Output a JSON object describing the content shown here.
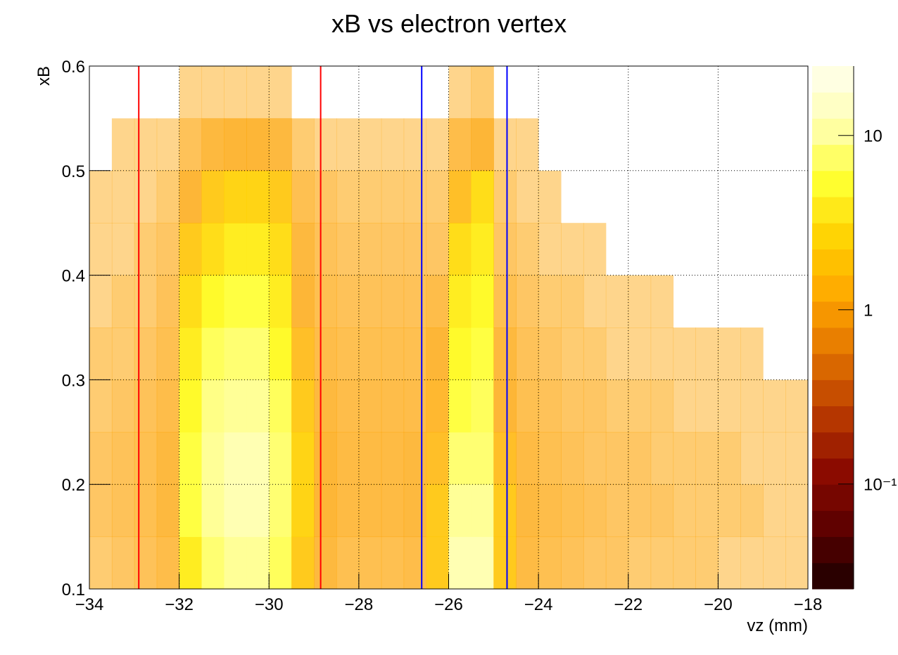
{
  "chart_data": {
    "type": "heatmap",
    "title": "xB vs electron vertex",
    "x_label": "vz (mm)",
    "y_label": "xB",
    "xlim": [
      -34,
      -18
    ],
    "xticks": [
      {
        "value": -34,
        "label": "−34"
      },
      {
        "value": -32,
        "label": "−32"
      },
      {
        "value": -30,
        "label": "−30"
      },
      {
        "value": -28,
        "label": "−28"
      },
      {
        "value": -26,
        "label": "−26"
      },
      {
        "value": -24,
        "label": "−24"
      },
      {
        "value": -22,
        "label": "−22"
      },
      {
        "value": -20,
        "label": "−20"
      },
      {
        "value": -18,
        "label": "−18"
      }
    ],
    "ylim": [
      0.1,
      0.6
    ],
    "yticks": [
      0.1,
      0.2,
      0.3,
      0.4,
      0.5,
      0.6
    ],
    "grid": true,
    "zlim": [
      0.025,
      25
    ],
    "zlog": true,
    "zticks": [
      {
        "value": 0.1,
        "label": "10⁻¹"
      },
      1,
      10
    ],
    "palette": [
      "#1c0000",
      "#5a0000",
      "#8a0a00",
      "#b83a00",
      "#e07000",
      "#ffa500",
      "#ffd000",
      "#ffff30",
      "#ffffb0",
      "#fffff0"
    ],
    "xbins": [
      -34,
      -33.5,
      -33,
      -32.5,
      -32,
      -31.5,
      -31,
      -30.5,
      -30,
      -29.5,
      -29,
      -28.5,
      -28,
      -27.5,
      -27,
      -26.5,
      -26,
      -25.5,
      -25,
      -24.5,
      -24,
      -23.5,
      -23,
      -22.5,
      -22,
      -21.5,
      -21,
      -20.5,
      -20,
      -19.5,
      -19,
      -18.5,
      -18
    ],
    "ybins": [
      0.1,
      0.15,
      0.2,
      0.25,
      0.3,
      0.35,
      0.4,
      0.45,
      0.5,
      0.55,
      0.6
    ],
    "z": [
      [
        0.2,
        0.3,
        0.3,
        0.2,
        0.2,
        0.1,
        0.1,
        0.1,
        null,
        null
      ],
      [
        0.3,
        0.4,
        0.4,
        0.3,
        0.2,
        0.2,
        0.1,
        0.1,
        0.1,
        null
      ],
      [
        0.4,
        0.5,
        0.5,
        0.4,
        0.3,
        0.2,
        0.2,
        0.1,
        0.1,
        null
      ],
      [
        0.6,
        0.8,
        0.8,
        0.6,
        0.5,
        0.4,
        0.3,
        0.2,
        0.1,
        null
      ],
      [
        4,
        6,
        6,
        5,
        4,
        3,
        2,
        1,
        0.4,
        0.1
      ],
      [
        8,
        10,
        10,
        9,
        7,
        5,
        3,
        2,
        0.8,
        0.1
      ],
      [
        10,
        12,
        12,
        10,
        8,
        6,
        4,
        2.5,
        1,
        0.1
      ],
      [
        10,
        12,
        12,
        10,
        8,
        6,
        4,
        2.5,
        1,
        0.1
      ],
      [
        7,
        8,
        8,
        7,
        5,
        4,
        3,
        2,
        0.8,
        0.1
      ],
      [
        2,
        2.5,
        2.5,
        2,
        1.5,
        1,
        0.8,
        0.5,
        0.2,
        null
      ],
      [
        0.8,
        1,
        1,
        0.8,
        0.6,
        0.5,
        0.4,
        0.3,
        0.1,
        null
      ],
      [
        0.5,
        0.7,
        0.7,
        0.6,
        0.5,
        0.4,
        0.3,
        0.2,
        0.1,
        null
      ],
      [
        0.5,
        0.7,
        0.7,
        0.6,
        0.5,
        0.4,
        0.3,
        0.2,
        0.1,
        null
      ],
      [
        0.5,
        0.7,
        0.7,
        0.6,
        0.5,
        0.4,
        0.3,
        0.2,
        0.1,
        null
      ],
      [
        0.6,
        0.8,
        0.8,
        0.6,
        0.5,
        0.4,
        0.3,
        0.2,
        0.1,
        null
      ],
      [
        2,
        2,
        1.5,
        1.2,
        1,
        0.6,
        0.3,
        0.2,
        0.1,
        null
      ],
      [
        12,
        10,
        8,
        6,
        5,
        4,
        3,
        1.5,
        0.6,
        0.1
      ],
      [
        12,
        10,
        8,
        7,
        6,
        5,
        4,
        3,
        1,
        0.2
      ],
      [
        2,
        2,
        1.5,
        1,
        0.8,
        0.5,
        0.3,
        0.2,
        0.1,
        null
      ],
      [
        0.7,
        0.8,
        0.7,
        0.5,
        0.4,
        0.3,
        0.2,
        0.1,
        0.1,
        null
      ],
      [
        0.5,
        0.6,
        0.5,
        0.4,
        0.3,
        0.2,
        0.1,
        0.1,
        null,
        null
      ],
      [
        0.4,
        0.5,
        0.4,
        0.3,
        0.2,
        0.2,
        0.1,
        null,
        null,
        null
      ],
      [
        0.3,
        0.4,
        0.3,
        0.3,
        0.2,
        0.1,
        0.1,
        null,
        null,
        null
      ],
      [
        0.3,
        0.3,
        0.3,
        0.2,
        0.1,
        0.1,
        null,
        null,
        null,
        null
      ],
      [
        0.2,
        0.3,
        0.3,
        0.2,
        0.1,
        0.1,
        null,
        null,
        null,
        null
      ],
      [
        0.2,
        0.3,
        0.2,
        0.2,
        0.1,
        0.1,
        null,
        null,
        null,
        null
      ],
      [
        0.2,
        0.2,
        0.2,
        0.1,
        0.1,
        null,
        null,
        null,
        null,
        null
      ],
      [
        0.2,
        0.2,
        0.2,
        0.1,
        0.1,
        null,
        null,
        null,
        null,
        null
      ],
      [
        0.1,
        0.2,
        0.2,
        0.1,
        0.1,
        null,
        null,
        null,
        null,
        null
      ],
      [
        0.1,
        0.2,
        0.1,
        0.1,
        0.1,
        null,
        null,
        null,
        null,
        null
      ],
      [
        0.1,
        0.1,
        0.1,
        0.1,
        null,
        null,
        null,
        null,
        null,
        null
      ],
      [
        0.1,
        0.1,
        0.1,
        0.1,
        null,
        null,
        null,
        null,
        null,
        null
      ]
    ],
    "lines": [
      {
        "x": -32.9,
        "color": "#ff0000"
      },
      {
        "x": -28.85,
        "color": "#ff0000"
      },
      {
        "x": -26.6,
        "color": "#0000ff"
      },
      {
        "x": -24.7,
        "color": "#0000ff"
      }
    ]
  }
}
